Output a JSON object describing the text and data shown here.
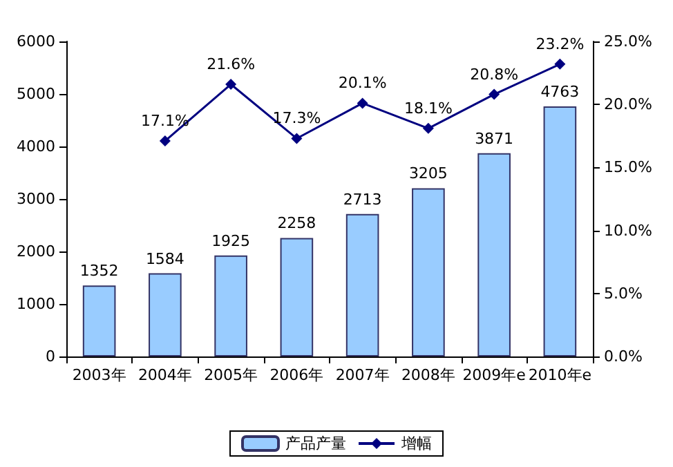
{
  "chart_data": {
    "type": "bar",
    "categories": [
      "2003年",
      "2004年",
      "2005年",
      "2006年",
      "2007年",
      "2008年",
      "2009年e",
      "2010年e"
    ],
    "series": [
      {
        "name": "产品产量",
        "color": "#99ccff",
        "values": [
          1352,
          1584,
          1925,
          2258,
          2713,
          3205,
          3871,
          4763
        ],
        "value_labels": [
          "1352",
          "1584",
          "1925",
          "2258",
          "2713",
          "3205",
          "3871",
          "4763"
        ]
      },
      {
        "name": "增幅",
        "type": "line",
        "axis": "y2",
        "color": "#000080",
        "values": [
          null,
          17.1,
          21.6,
          17.3,
          20.1,
          18.1,
          20.8,
          23.2
        ],
        "value_labels": [
          null,
          "17.1%",
          "21.6%",
          "17.3%",
          "20.1%",
          "18.1%",
          "20.8%",
          "23.2%"
        ]
      }
    ],
    "ylim": [
      0,
      6000
    ],
    "yticks": [
      0,
      1000,
      2000,
      3000,
      4000,
      5000,
      6000
    ],
    "y2lim": [
      0,
      25
    ],
    "y2ticks": [
      {
        "value": 0,
        "label": "0.0%"
      },
      {
        "value": 5,
        "label": "5.0%"
      },
      {
        "value": 10,
        "label": "10.0%"
      },
      {
        "value": 15,
        "label": "15.0%"
      },
      {
        "value": 20,
        "label": "20.0%"
      },
      {
        "value": 25,
        "label": "25.0%"
      }
    ],
    "marker": "diamond",
    "line_style": "solid",
    "grid": false,
    "legend": "bottom"
  }
}
